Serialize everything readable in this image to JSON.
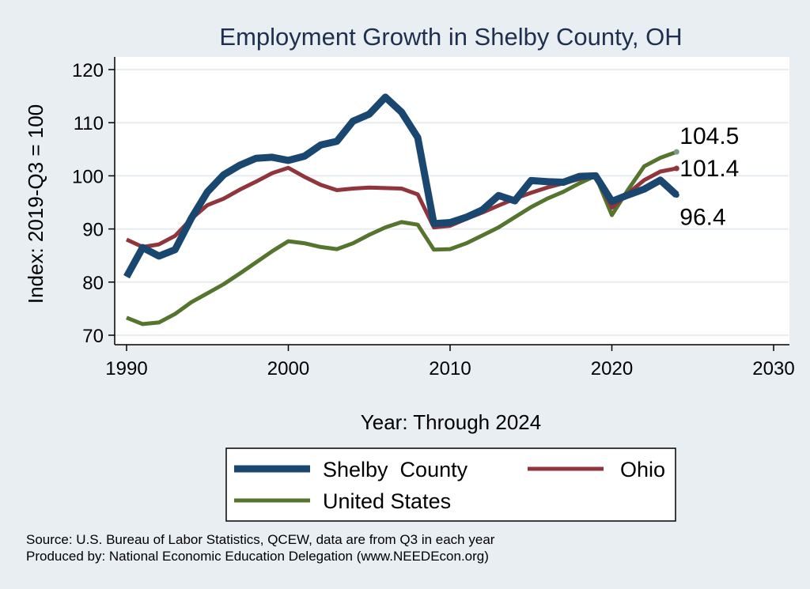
{
  "chart_data": {
    "type": "line",
    "title": "Employment Growth in Shelby County, OH",
    "xlabel": "Year: Through 2024",
    "ylabel": "Index: 2019-Q3 = 100",
    "xlim": [
      1990,
      2030
    ],
    "ylim": [
      68,
      122
    ],
    "x_ticks": [
      1990,
      2000,
      2010,
      2020,
      2030
    ],
    "y_ticks": [
      70,
      80,
      90,
      100,
      110,
      120
    ],
    "grid": true,
    "legend_position": "bottom",
    "x": [
      1990,
      1991,
      1992,
      1993,
      1994,
      1995,
      1996,
      1997,
      1998,
      1999,
      2000,
      2001,
      2002,
      2003,
      2004,
      2005,
      2006,
      2007,
      2008,
      2009,
      2010,
      2011,
      2012,
      2013,
      2014,
      2015,
      2016,
      2017,
      2018,
      2019,
      2020,
      2021,
      2022,
      2023,
      2024
    ],
    "series": [
      {
        "name": "Shelby  County",
        "color": "#1a476f",
        "end_label": "96.4",
        "values": [
          81.0,
          86.5,
          84.9,
          86.1,
          92.0,
          97.0,
          100.2,
          102.0,
          103.3,
          103.5,
          102.9,
          103.7,
          105.8,
          106.5,
          110.3,
          111.6,
          114.8,
          112.0,
          107.2,
          91.0,
          91.2,
          92.2,
          93.6,
          96.3,
          95.3,
          99.1,
          98.9,
          98.8,
          99.9,
          100.0,
          95.2,
          96.4,
          97.5,
          99.2,
          96.4
        ]
      },
      {
        "name": "Ohio",
        "color": "#90353b",
        "end_label": "101.4",
        "values": [
          88.0,
          86.6,
          87.1,
          88.7,
          91.9,
          94.5,
          95.7,
          97.4,
          98.9,
          100.5,
          101.5,
          99.8,
          98.3,
          97.3,
          97.6,
          97.8,
          97.7,
          97.6,
          96.5,
          90.3,
          90.6,
          91.9,
          93.1,
          94.4,
          95.7,
          96.8,
          97.8,
          98.6,
          99.4,
          100.0,
          94.0,
          96.7,
          99.2,
          100.8,
          101.4
        ]
      },
      {
        "name": "United States",
        "color": "#55752f",
        "end_label": "104.5",
        "values": [
          73.3,
          72.1,
          72.4,
          74.0,
          76.2,
          77.9,
          79.6,
          81.6,
          83.7,
          85.8,
          87.7,
          87.3,
          86.6,
          86.2,
          87.3,
          88.9,
          90.3,
          91.3,
          90.8,
          86.1,
          86.2,
          87.3,
          88.8,
          90.3,
          92.2,
          94.1,
          95.7,
          97.0,
          98.6,
          100.0,
          92.6,
          97.4,
          101.8,
          103.4,
          104.5
        ]
      }
    ],
    "source_lines": [
      "Source: U.S. Bureau of Labor Statistics, QCEW, data are from Q3 in each year",
      "Produced by: National Economic Education Delegation (www.NEEDEcon.org)"
    ]
  }
}
